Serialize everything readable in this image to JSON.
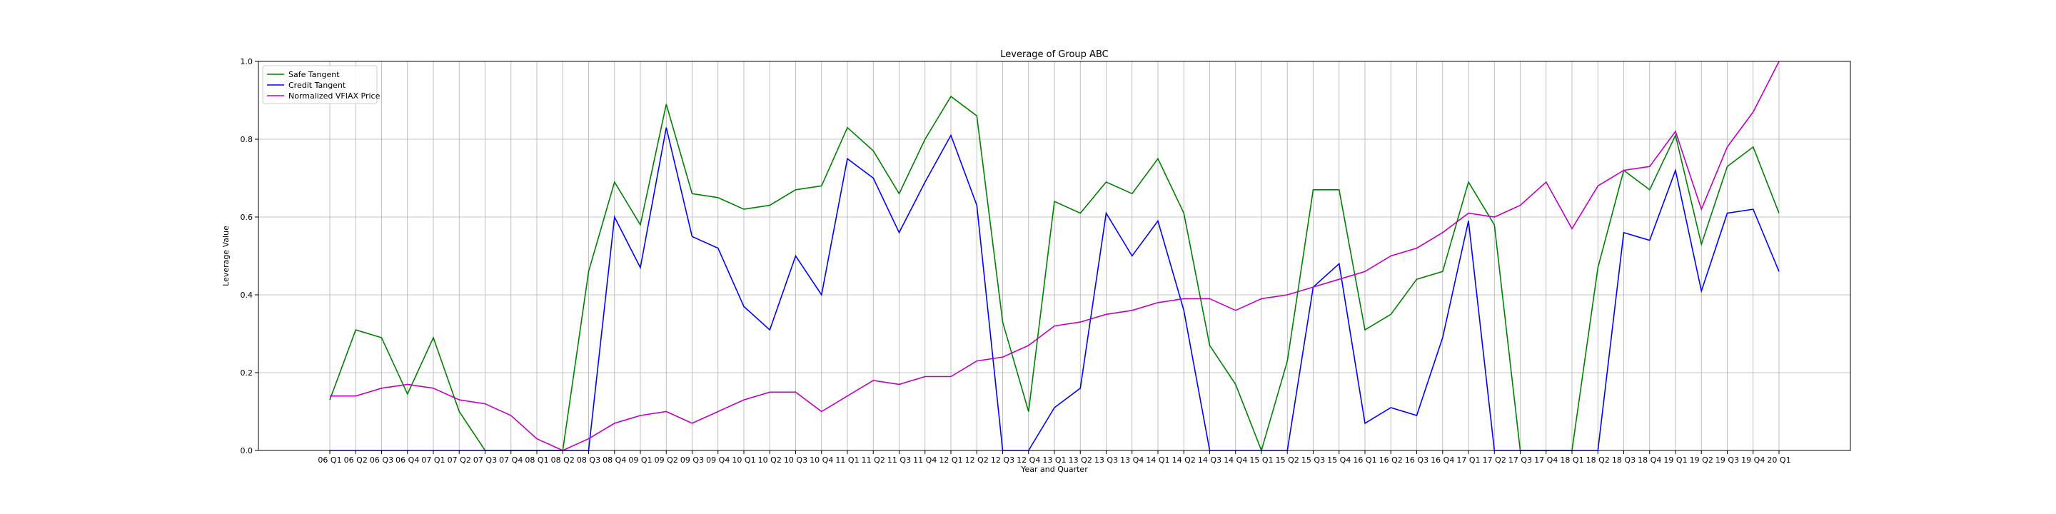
{
  "chart_data": {
    "type": "line",
    "title": "Leverage of Group ABC",
    "xlabel": "Year and Quarter",
    "ylabel": "Leverage Value",
    "ylim": [
      0,
      1.0
    ],
    "yticks": [
      "0.0",
      "0.2",
      "0.4",
      "0.6",
      "0.8",
      "1.0"
    ],
    "grid": true,
    "legend_position": "top-left",
    "categories": [
      "06 Q1",
      "06 Q2",
      "06 Q3",
      "06 Q4",
      "07 Q1",
      "07 Q2",
      "07 Q3",
      "07 Q4",
      "08 Q1",
      "08 Q2",
      "08 Q3",
      "08 Q4",
      "09 Q1",
      "09 Q2",
      "09 Q3",
      "09 Q4",
      "10 Q1",
      "10 Q2",
      "10 Q3",
      "10 Q4",
      "11 Q1",
      "11 Q2",
      "11 Q3",
      "11 Q4",
      "12 Q1",
      "12 Q2",
      "12 Q3",
      "12 Q4",
      "13 Q1",
      "13 Q2",
      "13 Q3",
      "13 Q4",
      "14 Q1",
      "14 Q2",
      "14 Q3",
      "14 Q4",
      "15 Q1",
      "15 Q2",
      "15 Q3",
      "15 Q4",
      "16 Q1",
      "16 Q2",
      "16 Q3",
      "16 Q4",
      "17 Q1",
      "17 Q2",
      "17 Q3",
      "17 Q4",
      "18 Q1",
      "18 Q2",
      "18 Q3",
      "18 Q4",
      "19 Q1",
      "19 Q2",
      "19 Q3",
      "19 Q4",
      "20 Q1"
    ],
    "series": [
      {
        "name": "Safe Tangent",
        "color": "#008000",
        "values": [
          0.13,
          0.31,
          0.29,
          0.145,
          0.29,
          0.1,
          0.0,
          0.0,
          0.0,
          0.0,
          0.46,
          0.69,
          0.58,
          0.89,
          0.66,
          0.65,
          0.62,
          0.63,
          0.67,
          0.68,
          0.83,
          0.77,
          0.66,
          0.8,
          0.91,
          0.86,
          0.33,
          0.1,
          0.64,
          0.61,
          0.69,
          0.66,
          0.75,
          0.61,
          0.27,
          0.17,
          0.0,
          0.23,
          0.67,
          0.67,
          0.31,
          0.35,
          0.44,
          0.46,
          0.69,
          0.58,
          0.0,
          0.0,
          0.0,
          0.47,
          0.72,
          0.67,
          0.81,
          0.53,
          0.73,
          0.78,
          0.61
        ]
      },
      {
        "name": "Credit Tangent",
        "color": "#0000ff",
        "values": [
          0.0,
          0.0,
          0.0,
          0.0,
          0.0,
          0.0,
          0.0,
          0.0,
          0.0,
          0.0,
          0.0,
          0.6,
          0.47,
          0.83,
          0.55,
          0.52,
          0.37,
          0.31,
          0.5,
          0.4,
          0.75,
          0.7,
          0.56,
          0.69,
          0.81,
          0.63,
          0.0,
          0.0,
          0.11,
          0.16,
          0.61,
          0.5,
          0.59,
          0.36,
          0.0,
          0.0,
          0.0,
          0.0,
          0.42,
          0.48,
          0.07,
          0.11,
          0.09,
          0.29,
          0.59,
          0.0,
          0.0,
          0.0,
          0.0,
          0.0,
          0.56,
          0.54,
          0.72,
          0.41,
          0.61,
          0.62,
          0.46
        ]
      },
      {
        "name": "Normalized VFIAX Price",
        "color": "#bf00bf",
        "values": [
          0.14,
          0.14,
          0.16,
          0.17,
          0.16,
          0.13,
          0.12,
          0.09,
          0.03,
          0.0,
          0.03,
          0.07,
          0.09,
          0.1,
          0.07,
          0.1,
          0.13,
          0.15,
          0.15,
          0.1,
          0.14,
          0.18,
          0.17,
          0.19,
          0.19,
          0.23,
          0.24,
          0.27,
          0.32,
          0.33,
          0.35,
          0.36,
          0.38,
          0.39,
          0.39,
          0.36,
          0.39,
          0.4,
          0.42,
          0.44,
          0.46,
          0.5,
          0.52,
          0.56,
          0.61,
          0.6,
          0.63,
          0.69,
          0.57,
          0.68,
          0.72,
          0.73,
          0.82,
          0.62,
          0.78,
          0.87,
          1.0
        ]
      }
    ]
  }
}
